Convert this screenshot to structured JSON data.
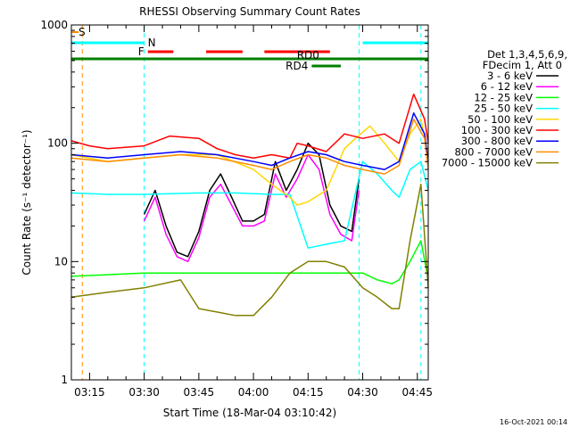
{
  "chart_data": {
    "type": "line",
    "title": "RHESSI Observing Summary Count Rates",
    "xlabel": "Start Time (18-Mar-04 03:10:42)",
    "ylabel": "Count Rate (s⁻¹ detector⁻¹)",
    "yscale": "log",
    "ylim": [
      1,
      1000
    ],
    "xlim": [
      "03:10",
      "04:48"
    ],
    "x_ticks": [
      "03:15",
      "03:30",
      "03:45",
      "04:00",
      "04:15",
      "04:30",
      "04:45"
    ],
    "y_ticks": [
      "1",
      "10",
      "100",
      "1000"
    ],
    "grid": false,
    "legend_position": "right",
    "legend_header": [
      "Det 1,3,4,5,6,9,",
      "FDecim 1, Att 0"
    ],
    "footer_date": "16-Oct-2021 00:14",
    "flags": [
      {
        "label": "S",
        "color": "#ff8c00",
        "segments": [
          [
            "03:10",
            "03:12"
          ]
        ]
      },
      {
        "label": "N",
        "color": "#00ffff",
        "segments": [
          [
            "03:10",
            "03:30"
          ],
          [
            "04:30",
            "04:48"
          ]
        ]
      },
      {
        "label": "F",
        "color": "#ff0000",
        "segments": [
          [
            "03:31",
            "03:38"
          ],
          [
            "03:47",
            "03:57"
          ],
          [
            "04:03",
            "04:21"
          ]
        ]
      },
      {
        "label": "RD0",
        "color": "#008000",
        "segments": [
          [
            "03:10",
            "04:48"
          ]
        ]
      },
      {
        "label": "RD4",
        "color": "#008000",
        "segments": [
          [
            "04:16",
            "04:24"
          ]
        ]
      }
    ],
    "vertical_markers": [
      {
        "time": "03:13",
        "color": "#ff8c00",
        "style": "dashed"
      },
      {
        "time": "03:30",
        "color": "#00ffff",
        "style": "dashed"
      },
      {
        "time": "04:29",
        "color": "#00ffff",
        "style": "dashed"
      },
      {
        "time": "04:46",
        "color": "#00ffff",
        "style": "dashed"
      }
    ],
    "series": [
      {
        "name": "3 - 6 keV",
        "color": "#000000",
        "x": [
          "03:30",
          "03:33",
          "03:36",
          "03:39",
          "03:42",
          "03:45",
          "03:48",
          "03:51",
          "03:54",
          "03:57",
          "04:00",
          "04:03",
          "04:06",
          "04:09",
          "04:12",
          "04:15",
          "04:18",
          "04:21",
          "04:24",
          "04:27",
          "04:29"
        ],
        "values": [
          25,
          40,
          20,
          12,
          11,
          18,
          40,
          55,
          35,
          22,
          22,
          25,
          70,
          40,
          60,
          100,
          80,
          30,
          20,
          18,
          50
        ]
      },
      {
        "name": "6 - 12 keV",
        "color": "#ff00ff",
        "x": [
          "03:30",
          "03:33",
          "03:36",
          "03:39",
          "03:42",
          "03:45",
          "03:48",
          "03:51",
          "03:54",
          "03:57",
          "04:00",
          "04:03",
          "04:06",
          "04:09",
          "04:12",
          "04:15",
          "04:18",
          "04:21",
          "04:24",
          "04:27",
          "04:29"
        ],
        "values": [
          22,
          35,
          17,
          11,
          10,
          16,
          35,
          45,
          30,
          20,
          20,
          22,
          55,
          35,
          50,
          80,
          60,
          25,
          17,
          15,
          40
        ]
      },
      {
        "name": "12 - 25 keV",
        "color": "#00ff00",
        "x": [
          "03:10",
          "03:30",
          "03:45",
          "04:00",
          "04:10",
          "04:20",
          "04:26",
          "04:30",
          "04:34",
          "04:38",
          "04:40",
          "04:43",
          "04:46",
          "04:48"
        ],
        "values": [
          7.5,
          8,
          8,
          8,
          8,
          8,
          8,
          8,
          7,
          6.5,
          7,
          10,
          15,
          7
        ]
      },
      {
        "name": "25 - 50 keV",
        "color": "#00ffff",
        "x": [
          "03:10",
          "03:20",
          "03:30",
          "03:45",
          "03:55",
          "04:05",
          "04:10",
          "04:15",
          "04:20",
          "04:25",
          "04:30",
          "04:34",
          "04:38",
          "04:40",
          "04:43",
          "04:46",
          "04:48"
        ],
        "values": [
          38,
          37,
          37,
          38,
          38,
          37,
          37,
          13,
          14,
          15,
          70,
          55,
          40,
          35,
          60,
          70,
          40
        ]
      },
      {
        "name": "50 - 100 keV",
        "color": "#ffd700",
        "x": [
          "03:10",
          "03:20",
          "03:30",
          "03:40",
          "03:50",
          "04:00",
          "04:05",
          "04:10",
          "04:12",
          "04:15",
          "04:20",
          "04:25",
          "04:28",
          "04:32",
          "04:36",
          "04:40",
          "04:43",
          "04:46",
          "04:48"
        ],
        "values": [
          80,
          70,
          75,
          80,
          80,
          60,
          45,
          35,
          30,
          32,
          40,
          90,
          110,
          140,
          100,
          70,
          120,
          160,
          80
        ]
      },
      {
        "name": "100 - 300 keV",
        "color": "#ff0000",
        "x": [
          "03:10",
          "03:15",
          "03:20",
          "03:30",
          "03:37",
          "03:45",
          "03:50",
          "03:55",
          "04:00",
          "04:05",
          "04:10",
          "04:12",
          "04:15",
          "04:20",
          "04:25",
          "04:30",
          "04:36",
          "04:40",
          "04:44",
          "04:47",
          "04:48"
        ],
        "values": [
          105,
          95,
          90,
          95,
          115,
          110,
          90,
          80,
          75,
          80,
          75,
          100,
          95,
          85,
          120,
          110,
          120,
          100,
          260,
          160,
          100
        ]
      },
      {
        "name": "300 - 800 keV",
        "color": "#0000ff",
        "x": [
          "03:10",
          "03:20",
          "03:30",
          "03:40",
          "03:50",
          "04:00",
          "04:05",
          "04:10",
          "04:15",
          "04:20",
          "04:25",
          "04:30",
          "04:36",
          "04:40",
          "04:44",
          "04:47",
          "04:48"
        ],
        "values": [
          80,
          75,
          80,
          85,
          80,
          70,
          65,
          75,
          85,
          80,
          70,
          65,
          60,
          70,
          180,
          120,
          70
        ]
      },
      {
        "name": "800 - 7000 keV",
        "color": "#ff8c00",
        "x": [
          "03:10",
          "03:20",
          "03:30",
          "03:40",
          "03:50",
          "04:00",
          "04:05",
          "04:10",
          "04:15",
          "04:20",
          "04:25",
          "04:30",
          "04:36",
          "04:40",
          "04:44",
          "04:47",
          "04:48"
        ],
        "values": [
          75,
          70,
          75,
          80,
          75,
          65,
          60,
          70,
          80,
          75,
          65,
          60,
          55,
          65,
          160,
          110,
          60
        ]
      },
      {
        "name": "7000 - 15000 keV",
        "color": "#808000",
        "x": [
          "03:10",
          "03:20",
          "03:30",
          "03:40",
          "03:45",
          "03:55",
          "04:00",
          "04:05",
          "04:10",
          "04:15",
          "04:20",
          "04:25",
          "04:30",
          "04:34",
          "04:38",
          "04:40",
          "04:43",
          "04:46",
          "04:48"
        ],
        "values": [
          5,
          5.5,
          6,
          7,
          4,
          3.5,
          3.5,
          5,
          8,
          10,
          10,
          9,
          6,
          5,
          4,
          4,
          15,
          45,
          6
        ]
      }
    ]
  }
}
